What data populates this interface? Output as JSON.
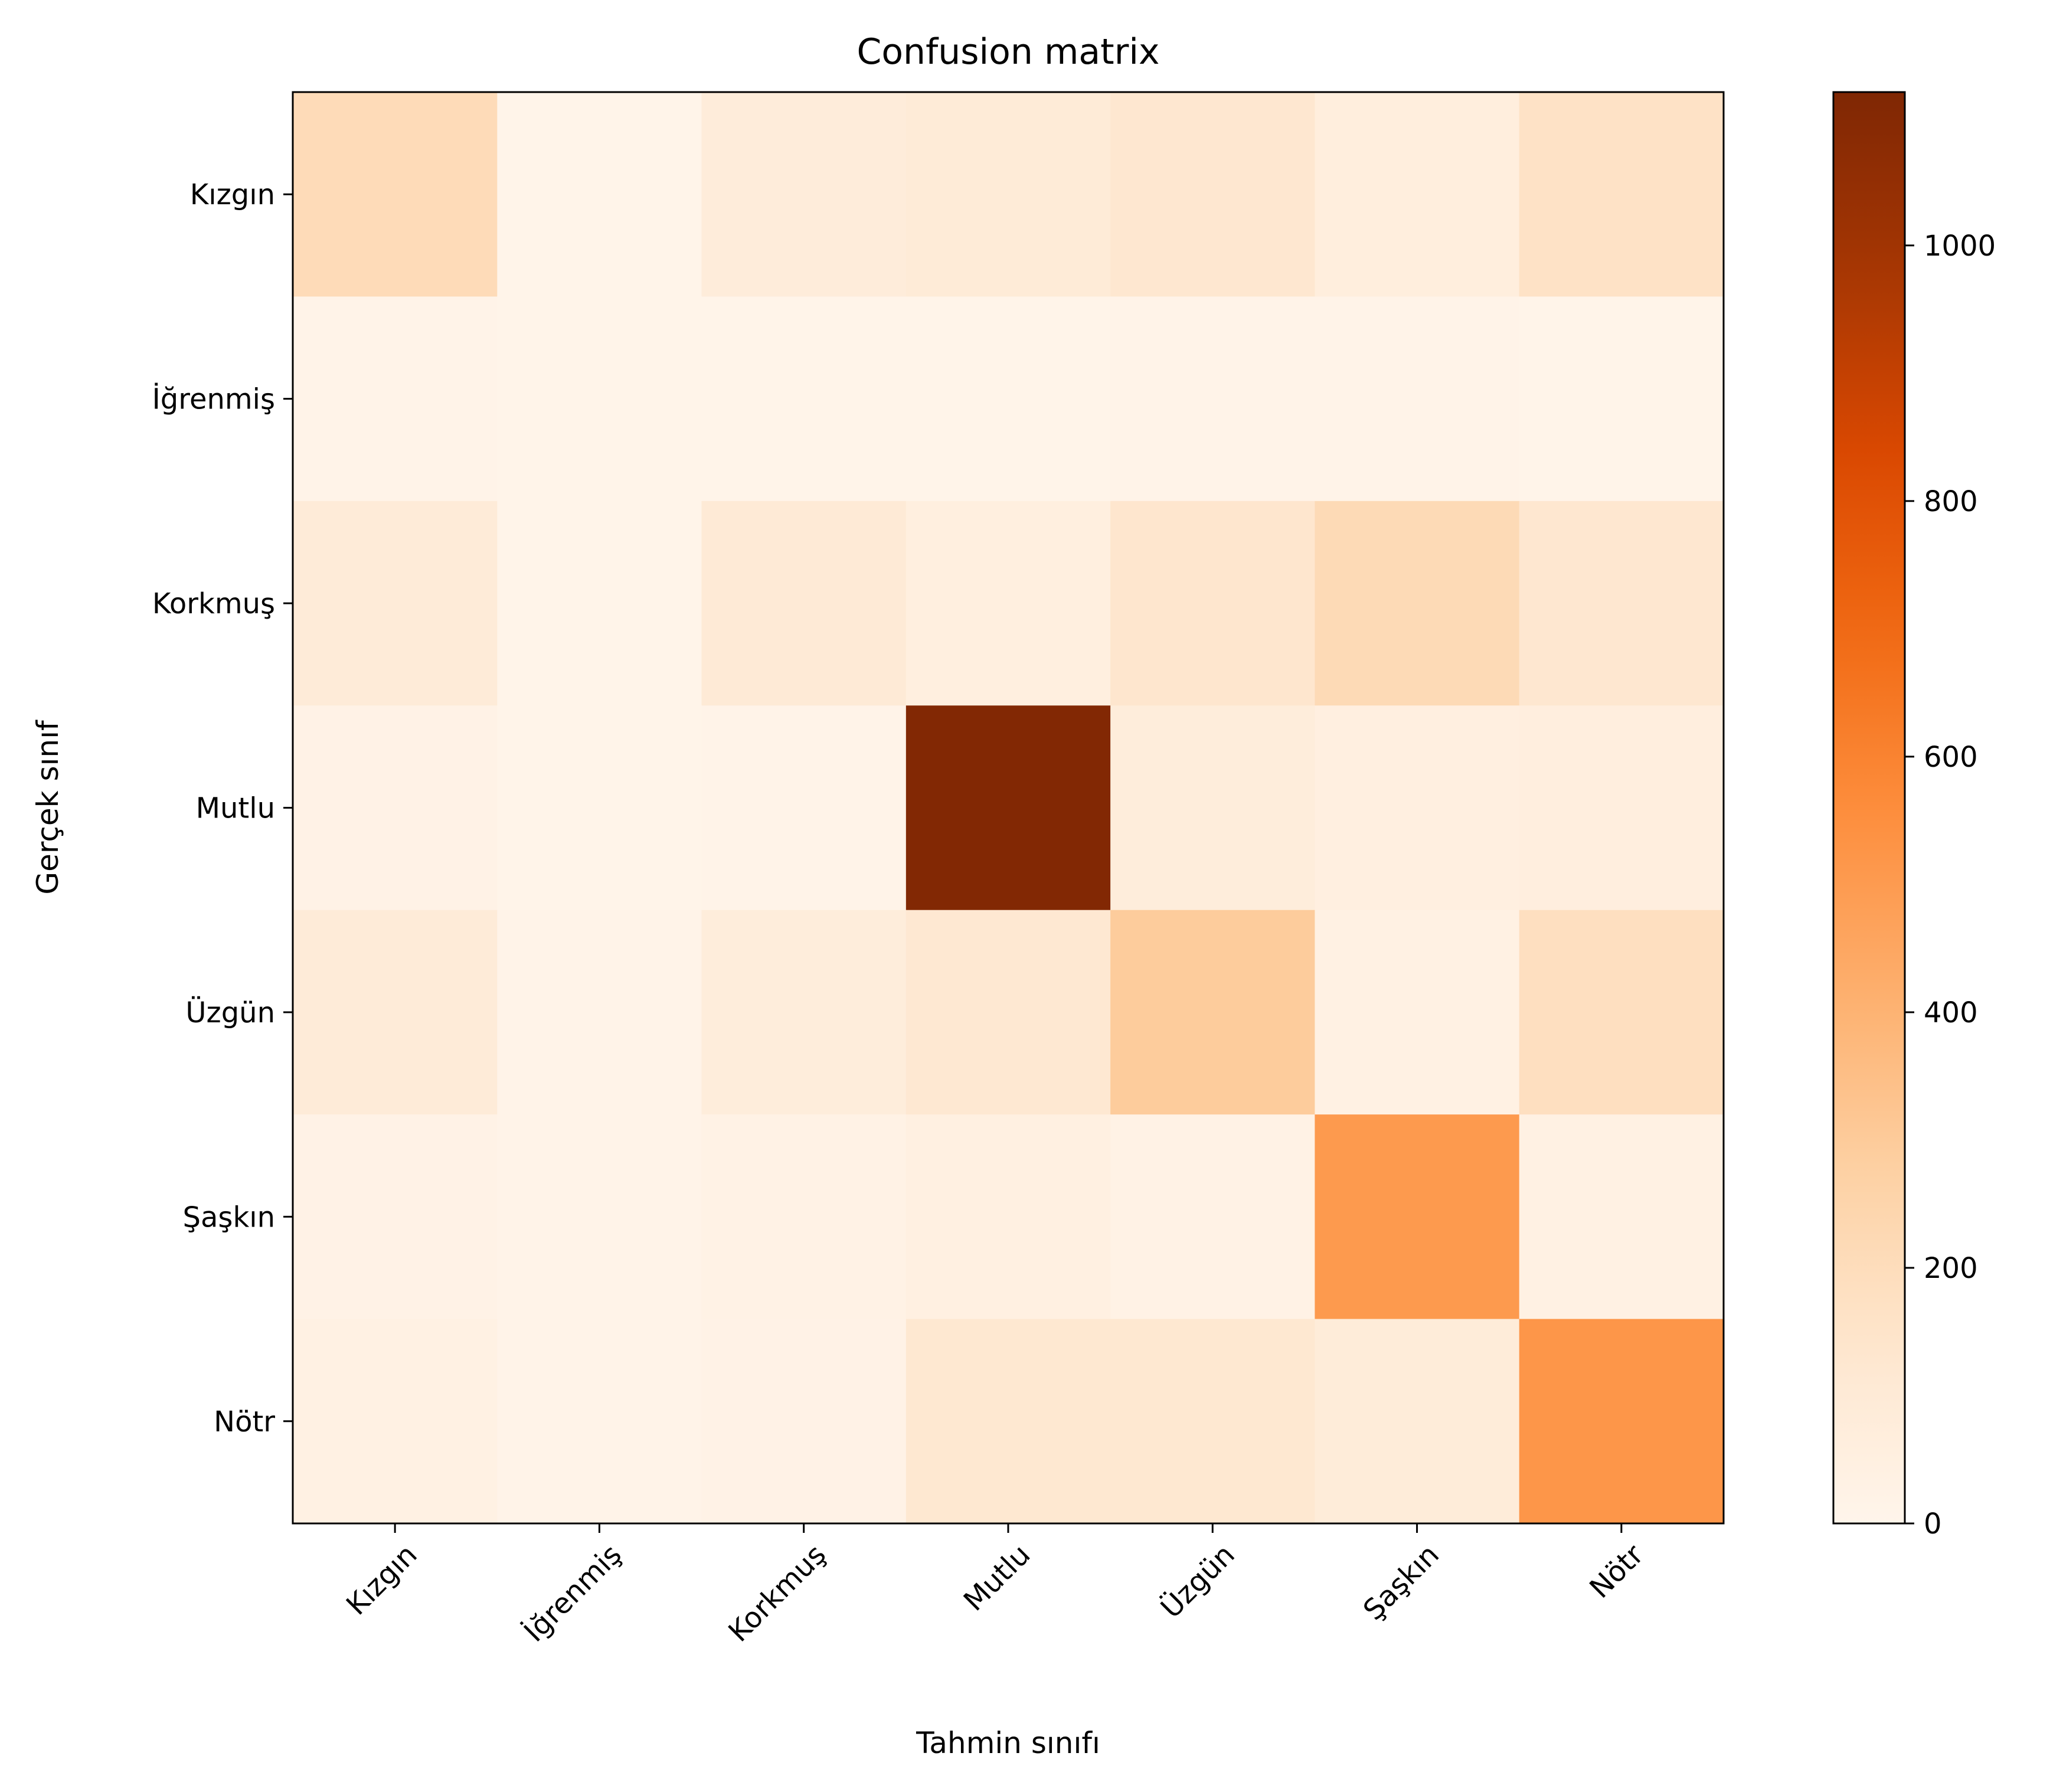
{
  "chart_data": {
    "type": "heatmap",
    "title": "Confusion matrix",
    "xlabel": "Tahmin sınıfı",
    "ylabel": "Gerçek sınıf",
    "x_categories": [
      "Kızgın",
      "İğrenmiş",
      "Korkmuş",
      "Mutlu",
      "Üzgün",
      "Şaşkın",
      "Nötr"
    ],
    "y_categories": [
      "Kızgın",
      "İğrenmiş",
      "Korkmuş",
      "Mutlu",
      "Üzgün",
      "Şaşkın",
      "Nötr"
    ],
    "values": [
      [
        210,
        10,
        80,
        95,
        130,
        70,
        165
      ],
      [
        15,
        10,
        10,
        10,
        15,
        15,
        10
      ],
      [
        90,
        10,
        100,
        60,
        140,
        215,
        130
      ],
      [
        25,
        10,
        15,
        1110,
        75,
        55,
        65
      ],
      [
        90,
        15,
        75,
        120,
        295,
        40,
        185
      ],
      [
        25,
        15,
        30,
        50,
        30,
        505,
        40
      ],
      [
        40,
        15,
        25,
        125,
        125,
        85,
        520
      ]
    ],
    "colormap": "Oranges",
    "colorbar": {
      "min": 0,
      "max": 1120,
      "ticks": [
        0,
        200,
        400,
        600,
        800,
        1000
      ]
    },
    "grid": false,
    "legend": "none"
  }
}
